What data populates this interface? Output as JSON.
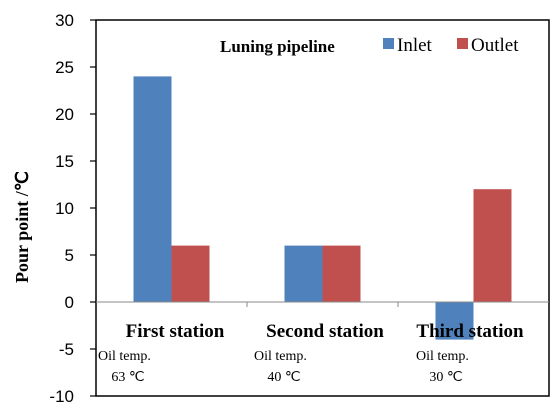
{
  "chart_data": {
    "type": "bar",
    "ylabel": "Pour point  /℃",
    "ylim": [
      -10,
      30
    ],
    "yticks": [
      -10,
      -5,
      0,
      5,
      10,
      15,
      20,
      25,
      30
    ],
    "categories": [
      "First station",
      "Second station",
      "Third station"
    ],
    "annotations": [
      {
        "line1": "Oil temp.",
        "line2": "63 ℃"
      },
      {
        "line1": "Oil temp.",
        "line2": "40 ℃"
      },
      {
        "line1": "Oil temp.",
        "line2": "30 ℃"
      }
    ],
    "legend_title": "Luning pipeline",
    "legend_position": "top-right",
    "series": [
      {
        "name": "Inlet",
        "color": "#4F81BD",
        "values": [
          24,
          6,
          -4
        ]
      },
      {
        "name": "Outlet",
        "color": "#C0504D",
        "values": [
          6,
          6,
          12
        ]
      }
    ]
  }
}
